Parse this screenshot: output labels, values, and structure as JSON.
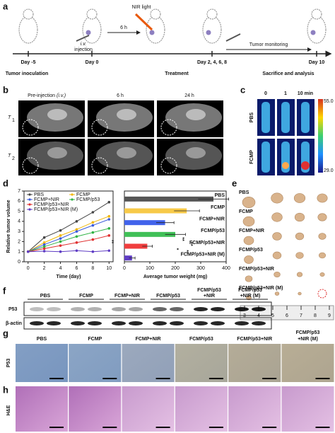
{
  "panel_a": {
    "label": "a",
    "days": [
      "Day -5",
      "Day 0",
      "Day 2, 4, 6, 8",
      "Day 10"
    ],
    "events": [
      "Tumor inoculation",
      "Treatment",
      "Sacrifice and analysis"
    ],
    "nir": "NIR light",
    "interval": "6 h",
    "route": "i.v.",
    "injection": "injection",
    "monitoring": "Tumor monitoring"
  },
  "panel_b": {
    "label": "b",
    "columns": [
      "Pre-injection",
      "6 h",
      "24 h"
    ],
    "route": "(i.v.)",
    "rows": [
      {
        "symbol": "T",
        "sub": "1"
      },
      {
        "symbol": "T",
        "sub": "2"
      }
    ]
  },
  "panel_c": {
    "label": "c",
    "times": [
      "0",
      "1",
      "10 min"
    ],
    "rows": [
      "PBS",
      "FCMP"
    ],
    "scale_max": "55.0",
    "scale_min": "29.0"
  },
  "panel_d": {
    "label": "d"
  },
  "chart_data": [
    {
      "type": "line",
      "xlabel": "Time (day)",
      "ylabel": "Relative tumor volume",
      "x": [
        0,
        2,
        4,
        6,
        8,
        10
      ],
      "xlim": [
        -0.5,
        10.5
      ],
      "xticks": [
        0,
        2,
        4,
        6,
        8,
        10
      ],
      "ylim": [
        0,
        7
      ],
      "yticks": [
        0,
        1,
        2,
        3,
        4,
        5,
        6,
        7
      ],
      "series": [
        {
          "name": "PBS",
          "color": "#444444",
          "values": [
            1,
            2.4,
            3.1,
            4.0,
            4.9,
            5.9
          ]
        },
        {
          "name": "FCMP",
          "color": "#f2b705",
          "values": [
            1,
            1.9,
            2.6,
            3.2,
            3.9,
            4.5
          ]
        },
        {
          "name": "FCMP+NIR",
          "color": "#3b5bdb",
          "values": [
            1,
            1.7,
            2.3,
            3.0,
            3.6,
            4.2
          ]
        },
        {
          "name": "FCMP/p53",
          "color": "#2fb344",
          "values": [
            1,
            1.5,
            2.0,
            2.5,
            2.9,
            3.3
          ]
        },
        {
          "name": "FCMP/p53+NIR",
          "color": "#e03131",
          "values": [
            1,
            1.3,
            1.6,
            1.9,
            2.2,
            2.6
          ]
        },
        {
          "name": "FCMP/p53+NIR (M)",
          "color": "#5f3dc4",
          "values": [
            1,
            1.05,
            1.0,
            1.1,
            1.0,
            1.1
          ]
        }
      ],
      "annotations": [
        "**"
      ]
    },
    {
      "type": "bar",
      "orientation": "horizontal",
      "xlabel": "Average tumor weight (mg)",
      "categories": [
        "PBS",
        "FCMP",
        "FCMP+NIR",
        "FCMP/p53",
        "FCMP/p53+NIR",
        "FCMP/p53+NIR (M)"
      ],
      "values": [
        350,
        245,
        160,
        200,
        90,
        30
      ],
      "errors": [
        60,
        50,
        35,
        40,
        20,
        12
      ],
      "colors": [
        "#555555",
        "#f7c948",
        "#4263eb",
        "#40c057",
        "#f03e3e",
        "#5f3dc4"
      ],
      "xlim": [
        0,
        400
      ],
      "xticks": [
        0,
        100,
        200,
        300,
        400
      ],
      "annotations": [
        "**",
        "*",
        "**",
        "**"
      ]
    }
  ],
  "panel_e": {
    "label": "e",
    "groups": [
      "PBS",
      "FCMP",
      "FCMP+NIR",
      "FCMP/p53",
      "FCMP/p53+NIR",
      "FCMP/p53+NIR (M)"
    ],
    "ruler": [
      "3",
      "4",
      "5",
      "6",
      "7",
      "8",
      "9"
    ]
  },
  "panel_f": {
    "label": "f",
    "columns": [
      [
        "PBS"
      ],
      [
        "FCMP"
      ],
      [
        "FCMP+NIR"
      ],
      [
        "FCMP/p53"
      ],
      [
        "FCMP/p53",
        "+NIR"
      ],
      [
        "FCMP/p53",
        "+NIR (M)"
      ]
    ],
    "rows": [
      "P53",
      "β-actin"
    ]
  },
  "panel_g": {
    "label": "g",
    "columns": [
      [
        "PBS"
      ],
      [
        "FCMP"
      ],
      [
        "FCMP+NIR"
      ],
      [
        "FCMP/p53"
      ],
      [
        "FCMP/p53+NIR"
      ],
      [
        "FCMP/p53",
        "+NIR (M)"
      ]
    ],
    "row": "P53"
  },
  "panel_h": {
    "label": "h",
    "row": "H&E"
  }
}
